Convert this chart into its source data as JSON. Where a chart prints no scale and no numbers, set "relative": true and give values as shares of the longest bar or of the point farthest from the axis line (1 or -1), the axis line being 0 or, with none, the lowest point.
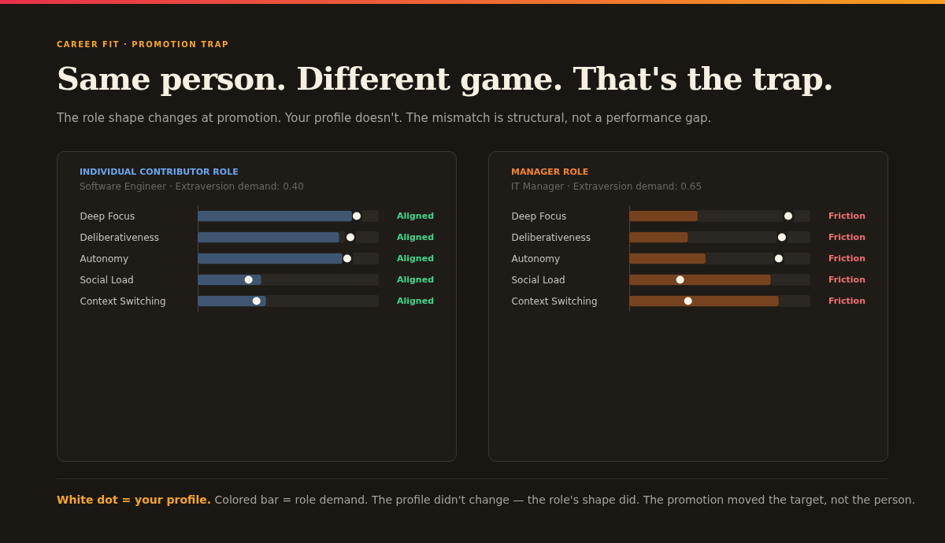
{
  "chart_data": [
    {
      "type": "other",
      "title": "Same person. Different game. That's the trap.",
      "subtitle": "The role shape changes at promotion. Your profile doesn't. The mismatch is structural, not a performance gap.",
      "annotations": [
        "CAREER FIT · PROMOTION TRAP",
        "White dot = your profile.",
        "Colored bar = role demand. The profile didn't change — the role's shape did. The promotion moved the target, not the person."
      ]
    },
    {
      "type": "bar",
      "orientation": "horizontal",
      "relative": true,
      "title": "INDIVIDUAL CONTRIBUTOR ROLE",
      "subtitle": "Software Engineer · Extraversion demand: 0.40",
      "categories": [
        "Deep Focus",
        "Deliberativeness",
        "Autonomy",
        "Social Load",
        "Context Switching"
      ],
      "series": [
        {
          "color": "#3f5672",
          "values": [
            0.97,
            0.89,
            0.91,
            0.4,
            0.43
          ]
        },
        {
          "type": "scatter",
          "color": "#fbf5ea",
          "values": [
            1,
            0.96,
            0.94,
            0.32,
            0.37
          ]
        }
      ],
      "annotations": [
        "Aligned",
        "Aligned",
        "Aligned",
        "Aligned",
        "Aligned"
      ],
      "marker": "circle"
    },
    {
      "type": "bar",
      "orientation": "horizontal",
      "relative": true,
      "title": "MANAGER ROLE",
      "subtitle": "IT Manager · Extraversion demand: 0.65",
      "categories": [
        "Deep Focus",
        "Deliberativeness",
        "Autonomy",
        "Social Load",
        "Context Switching"
      ],
      "series": [
        {
          "color": "#77431f",
          "values": [
            0.43,
            0.37,
            0.48,
            0.89,
            0.94
          ]
        },
        {
          "type": "scatter",
          "color": "#fbf5ea",
          "values": [
            1,
            0.96,
            0.94,
            0.32,
            0.37
          ]
        }
      ],
      "annotations": [
        "Friction",
        "Friction",
        "Friction",
        "Friction",
        "Friction"
      ],
      "marker": "circle"
    }
  ]
}
